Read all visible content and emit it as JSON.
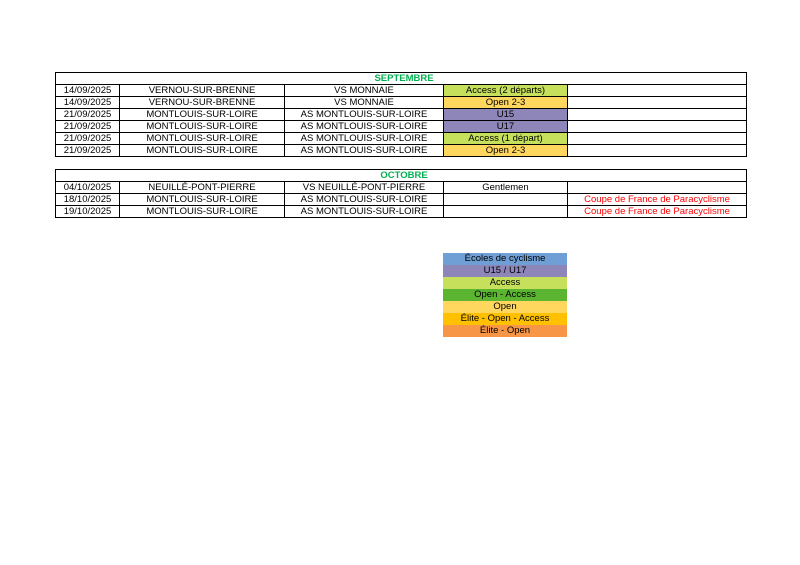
{
  "colors": {
    "month_title": "#00b050",
    "note_red": "#ff0000",
    "access": "#c7e05c",
    "open": "#ffd75e",
    "u15_u17": "#8e86b8",
    "ecoles": "#6f9fd4",
    "open_access": "#5cb531",
    "elite_open_access": "#ffc000",
    "elite_open": "#f79646"
  },
  "tables": [
    {
      "month": "SEPTEMBRE",
      "rows": [
        {
          "date": "14/09/2025",
          "city": "VERNOU-SUR-BRENNE",
          "club": "VS MONNAIE",
          "category": "Access (2 départs)",
          "cat_color": "#c7e05c",
          "note": ""
        },
        {
          "date": "14/09/2025",
          "city": "VERNOU-SUR-BRENNE",
          "club": "VS MONNAIE",
          "category": "Open 2-3",
          "cat_color": "#ffd75e",
          "note": ""
        },
        {
          "date": "21/09/2025",
          "city": "MONTLOUIS-SUR-LOIRE",
          "club": "AS MONTLOUIS-SUR-LOIRE",
          "category": "U15",
          "cat_color": "#8e86b8",
          "note": ""
        },
        {
          "date": "21/09/2025",
          "city": "MONTLOUIS-SUR-LOIRE",
          "club": "AS MONTLOUIS-SUR-LOIRE",
          "category": "U17",
          "cat_color": "#8e86b8",
          "note": ""
        },
        {
          "date": "21/09/2025",
          "city": "MONTLOUIS-SUR-LOIRE",
          "club": "AS MONTLOUIS-SUR-LOIRE",
          "category": "Access (1 départ)",
          "cat_color": "#c7e05c",
          "note": ""
        },
        {
          "date": "21/09/2025",
          "city": "MONTLOUIS-SUR-LOIRE",
          "club": "AS MONTLOUIS-SUR-LOIRE",
          "category": "Open 2-3",
          "cat_color": "#ffd75e",
          "note": ""
        }
      ]
    },
    {
      "month": "OCTOBRE",
      "rows": [
        {
          "date": "04/10/2025",
          "city": "NEUILLÉ-PONT-PIERRE",
          "club": "VS NEUILLÉ-PONT-PIERRE",
          "category": "Gentlemen",
          "cat_color": "",
          "note": ""
        },
        {
          "date": "18/10/2025",
          "city": "MONTLOUIS-SUR-LOIRE",
          "club": "AS MONTLOUIS-SUR-LOIRE",
          "category": "",
          "cat_color": "",
          "note": "Coupe de France de Paracyclisme"
        },
        {
          "date": "19/10/2025",
          "city": "MONTLOUIS-SUR-LOIRE",
          "club": "AS MONTLOUIS-SUR-LOIRE",
          "category": "",
          "cat_color": "",
          "note": "Coupe de France de Paracyclisme"
        }
      ]
    }
  ],
  "legend": [
    {
      "label": "Écoles de cyclisme",
      "color": "#6f9fd4"
    },
    {
      "label": "U15 / U17",
      "color": "#8e86b8"
    },
    {
      "label": "Access",
      "color": "#c7e05c"
    },
    {
      "label": "Open - Access",
      "color": "#5cb531"
    },
    {
      "label": "Open",
      "color": "#ffd75e"
    },
    {
      "label": "Élite - Open - Access",
      "color": "#ffc000"
    },
    {
      "label": "Élite - Open",
      "color": "#f79646"
    }
  ]
}
